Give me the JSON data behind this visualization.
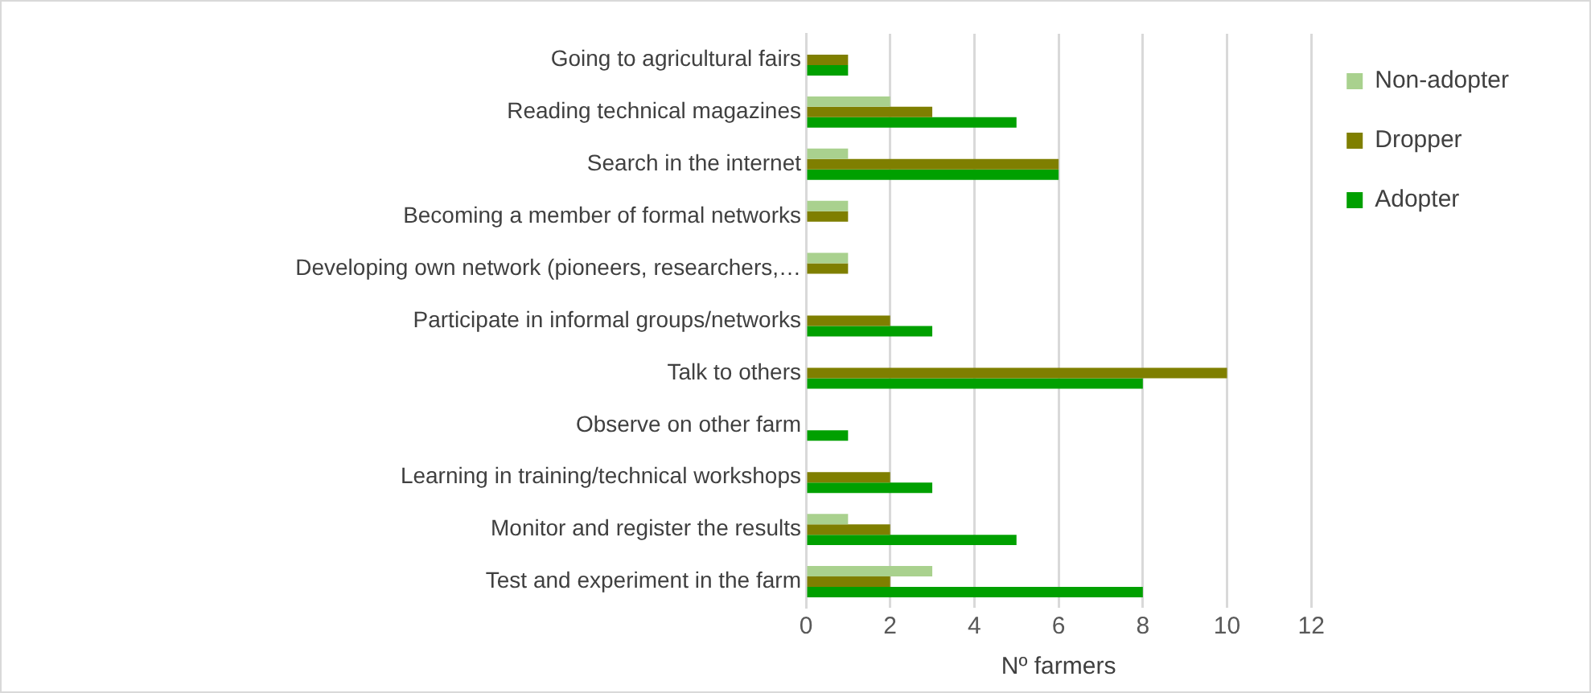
{
  "chart_data": {
    "type": "bar",
    "orientation": "horizontal",
    "xlabel": "Nº farmers",
    "categories": [
      "Going to agricultural fairs",
      "Reading technical magazines",
      "Search in the internet",
      "Becoming a member of formal networks",
      "Developing own network (pioneers, researchers,…",
      "Participate in informal groups/networks",
      "Talk to others",
      "Observe on other farm",
      "Learning in training/technical workshops",
      "Monitor and register the results",
      "Test and experiment in the farm"
    ],
    "series": [
      {
        "name": "Non-adopter",
        "color": "#a9d18e",
        "values": [
          0,
          2,
          1,
          1,
          1,
          0,
          0,
          0,
          0,
          1,
          3
        ]
      },
      {
        "name": "Dropper",
        "color": "#7f7f00",
        "values": [
          1,
          3,
          6,
          1,
          1,
          2,
          10,
          0,
          2,
          2,
          2
        ]
      },
      {
        "name": "Adopter",
        "color": "#00a000",
        "values": [
          1,
          5,
          6,
          0,
          0,
          3,
          8,
          1,
          3,
          5,
          8
        ]
      }
    ],
    "xlim": [
      0,
      12
    ],
    "xticks": [
      0,
      2,
      4,
      6,
      8,
      10,
      12
    ],
    "grid": "x",
    "legend": "right"
  }
}
